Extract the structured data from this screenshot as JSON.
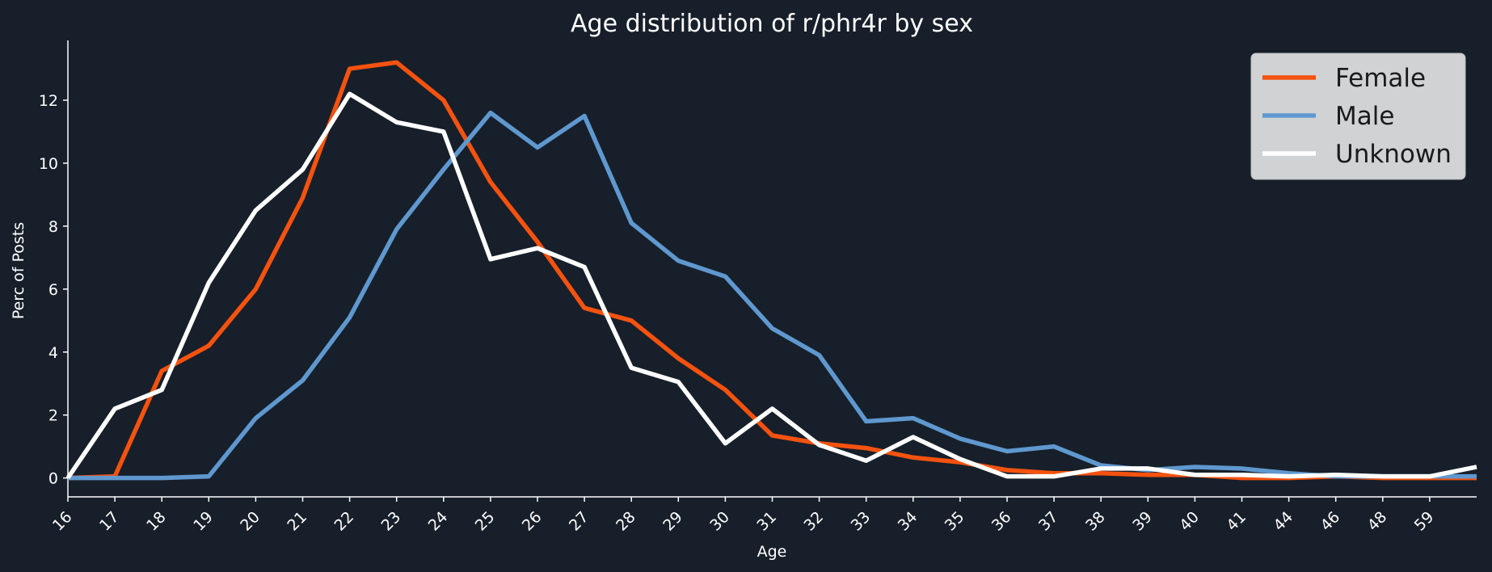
{
  "chart_data": {
    "type": "line",
    "title": "Age distribution of r/phr4r by sex",
    "xlabel": "Age",
    "ylabel": "Perc of Posts",
    "categories": [
      "16",
      "17",
      "18",
      "19",
      "20",
      "21",
      "22",
      "23",
      "24",
      "25",
      "26",
      "27",
      "28",
      "29",
      "30",
      "31",
      "32",
      "33",
      "34",
      "35",
      "36",
      "37",
      "38",
      "39",
      "40",
      "41",
      "44",
      "46",
      "48",
      "59"
    ],
    "yticks": [
      0,
      2,
      4,
      6,
      8,
      10,
      12
    ],
    "ylim": [
      -0.6,
      13.9
    ],
    "grid": false,
    "legend_position": "top-right",
    "series": [
      {
        "name": "Female",
        "color": "#f4520f",
        "values": [
          0.0,
          0.05,
          3.4,
          4.2,
          6.0,
          8.9,
          13.0,
          13.2,
          12.0,
          9.4,
          7.5,
          5.4,
          5.0,
          3.8,
          2.8,
          1.35,
          1.1,
          0.95,
          0.65,
          0.5,
          0.25,
          0.15,
          0.15,
          0.1,
          0.1,
          0.0,
          0.0,
          0.05,
          0.0,
          0.0
        ]
      },
      {
        "name": "Male",
        "color": "#5f98cf",
        "values": [
          0.0,
          0.0,
          0.0,
          0.05,
          1.9,
          3.1,
          5.1,
          7.9,
          9.8,
          11.6,
          10.5,
          11.5,
          8.1,
          6.9,
          6.4,
          4.75,
          3.9,
          1.8,
          1.9,
          1.25,
          0.85,
          1.0,
          0.4,
          0.25,
          0.35,
          0.3,
          0.15,
          0.05,
          0.05,
          0.05
        ]
      },
      {
        "name": "Unknown",
        "color": "#ffffff",
        "values": [
          0.0,
          2.2,
          2.8,
          6.2,
          8.5,
          9.8,
          12.2,
          11.3,
          11.0,
          6.95,
          7.3,
          6.7,
          3.5,
          3.05,
          1.1,
          2.2,
          1.05,
          0.55,
          1.3,
          0.6,
          0.05,
          0.05,
          0.3,
          0.3,
          0.1,
          0.1,
          0.05,
          0.1,
          0.05,
          0.05
        ]
      }
    ],
    "tail_values": [
      0.0,
      0.05,
      0.35
    ]
  }
}
